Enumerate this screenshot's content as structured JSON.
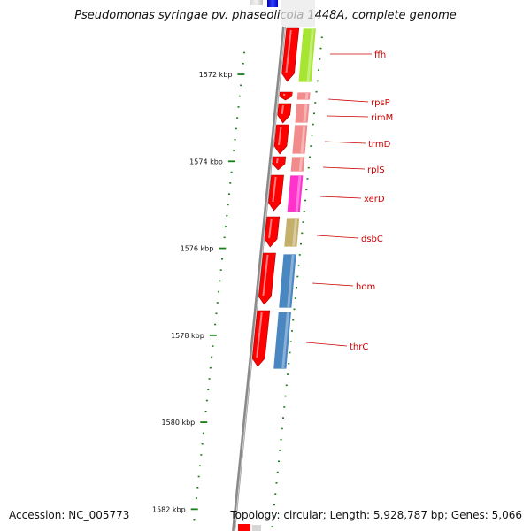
{
  "title": "Pseudomonas syringae pv. phaseolicola 1448A, complete genome",
  "footer": {
    "accession": "Accession: NC_005773",
    "stats": "Topology: circular; Length: 5,928,787 bp; Genes: 5,066"
  },
  "colors": {
    "backbone": "#8a8a8a",
    "forward_strand": "#ff0000",
    "tick": "#1a7f1a",
    "label_line": "#cc0000"
  },
  "scale": {
    "unit": "kbp",
    "range_kbp": [
      1570.9,
      1582.4
    ],
    "major_ticks": [
      {
        "kbp": 1572,
        "label": "1572 kbp"
      },
      {
        "kbp": 1574,
        "label": "1574 kbp"
      },
      {
        "kbp": 1576,
        "label": "1576 kbp"
      },
      {
        "kbp": 1578,
        "label": "1578 kbp"
      },
      {
        "kbp": 1580,
        "label": "1580 kbp"
      },
      {
        "kbp": 1582,
        "label": "1582 kbp"
      }
    ]
  },
  "genes": [
    {
      "name": "ffh",
      "color": "#a6e633"
    },
    {
      "name": "rpsP",
      "color": "#f28c8c"
    },
    {
      "name": "rimM",
      "color": "#f28c8c"
    },
    {
      "name": "trmD",
      "color": "#f28c8c"
    },
    {
      "name": "rplS",
      "color": "#f28c8c"
    },
    {
      "name": "xerD",
      "color": "#ff33cc"
    },
    {
      "name": "dsbC",
      "color": "#c4b06a"
    },
    {
      "name": "hom",
      "color": "#4a86c0"
    },
    {
      "name": "thrC",
      "color": "#4a86c0"
    }
  ]
}
